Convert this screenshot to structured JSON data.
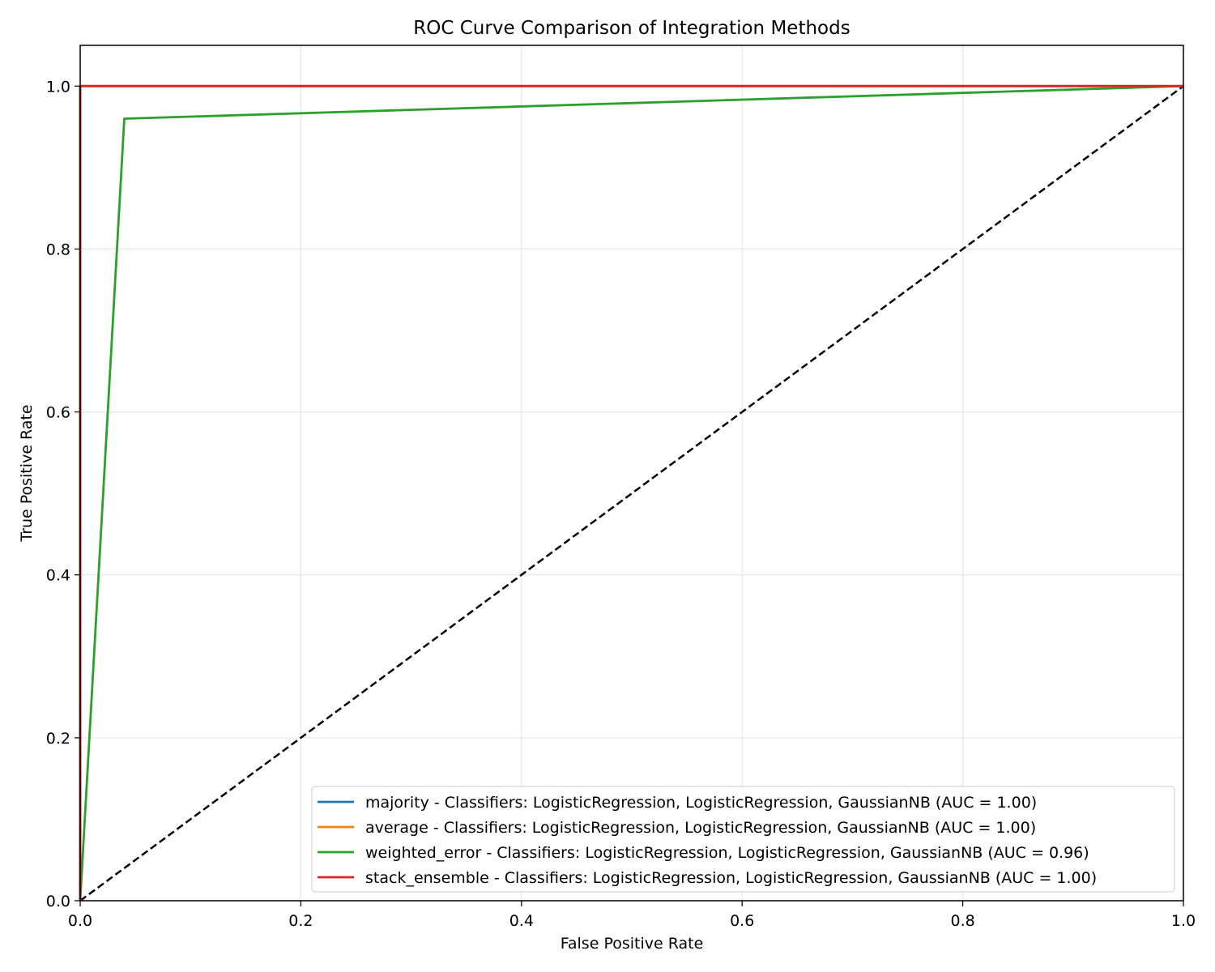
{
  "chart_data": {
    "type": "line",
    "title": "ROC Curve Comparison of Integration Methods",
    "xlabel": "False Positive Rate",
    "ylabel": "True Positive Rate",
    "xlim": [
      0.0,
      1.0
    ],
    "ylim": [
      0.0,
      1.05
    ],
    "xticks": [
      0.0,
      0.2,
      0.4,
      0.6,
      0.8,
      1.0
    ],
    "yticks": [
      0.0,
      0.2,
      0.4,
      0.6,
      0.8,
      1.0
    ],
    "xtick_labels": [
      "0.0",
      "0.2",
      "0.4",
      "0.6",
      "0.8",
      "1.0"
    ],
    "ytick_labels": [
      "0.0",
      "0.2",
      "0.4",
      "0.6",
      "0.8",
      "1.0"
    ],
    "grid": true,
    "legend_position": "lower-right",
    "series": [
      {
        "name": "majority - Classifiers: LogisticRegression, LogisticRegression, GaussianNB (AUC = 1.00)",
        "color": "#1f77b4",
        "x": [
          0.0,
          0.0,
          1.0
        ],
        "y": [
          0.0,
          1.0,
          1.0
        ]
      },
      {
        "name": "average - Classifiers: LogisticRegression, LogisticRegression, GaussianNB (AUC = 1.00)",
        "color": "#ff7f0e",
        "x": [
          0.0,
          0.0,
          1.0
        ],
        "y": [
          0.0,
          1.0,
          1.0
        ]
      },
      {
        "name": "weighted_error - Classifiers: LogisticRegression, LogisticRegression, GaussianNB (AUC = 0.96)",
        "color": "#2ca02c",
        "x": [
          0.0,
          0.04,
          1.0
        ],
        "y": [
          0.0,
          0.96,
          1.0
        ]
      },
      {
        "name": "stack_ensemble - Classifiers: LogisticRegression, LogisticRegression, GaussianNB (AUC = 1.00)",
        "color": "#d62728",
        "x": [
          0.0,
          0.0,
          1.0
        ],
        "y": [
          0.0,
          1.0,
          1.0
        ]
      }
    ],
    "reference_line": {
      "x": [
        0.0,
        1.0
      ],
      "y": [
        0.0,
        1.0
      ],
      "color": "#000000",
      "style": "dashed"
    }
  }
}
